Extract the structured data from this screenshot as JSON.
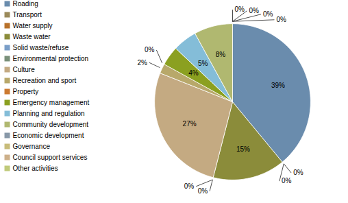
{
  "chart_data": {
    "type": "pie",
    "categories": [
      "Roading",
      "Transport",
      "Water supply",
      "Waste water",
      "Solid waste/refuse",
      "Environmental protection",
      "Culture",
      "Recreation and sport",
      "Property",
      "Emergency management",
      "Planning and regulation",
      "Community development",
      "Economic development",
      "Governance",
      "Council support services",
      "Other activities"
    ],
    "values": [
      39,
      0,
      0,
      15,
      0,
      0,
      27,
      2,
      0,
      4,
      5,
      8,
      0,
      0,
      0,
      0
    ],
    "value_labels": [
      "39%",
      "0%",
      "0%",
      "15%",
      "0%",
      "0%",
      "27%",
      "2%",
      "0%",
      "4%",
      "5%",
      "8%",
      "0%",
      "0%",
      "0%",
      "0%"
    ],
    "colors": [
      "#6A8CAD",
      "#9B8A5A",
      "#B8712A",
      "#8B8C3A",
      "#7A9EC8",
      "#7A907A",
      "#C4AA82",
      "#B8A86A",
      "#CC7A30",
      "#8BA020",
      "#84BDD8",
      "#B0B870",
      "#8898A8",
      "#C8BC7A",
      "#CDB08A",
      "#C0CA7A"
    ],
    "data_labels": true,
    "legend": "upper left"
  }
}
